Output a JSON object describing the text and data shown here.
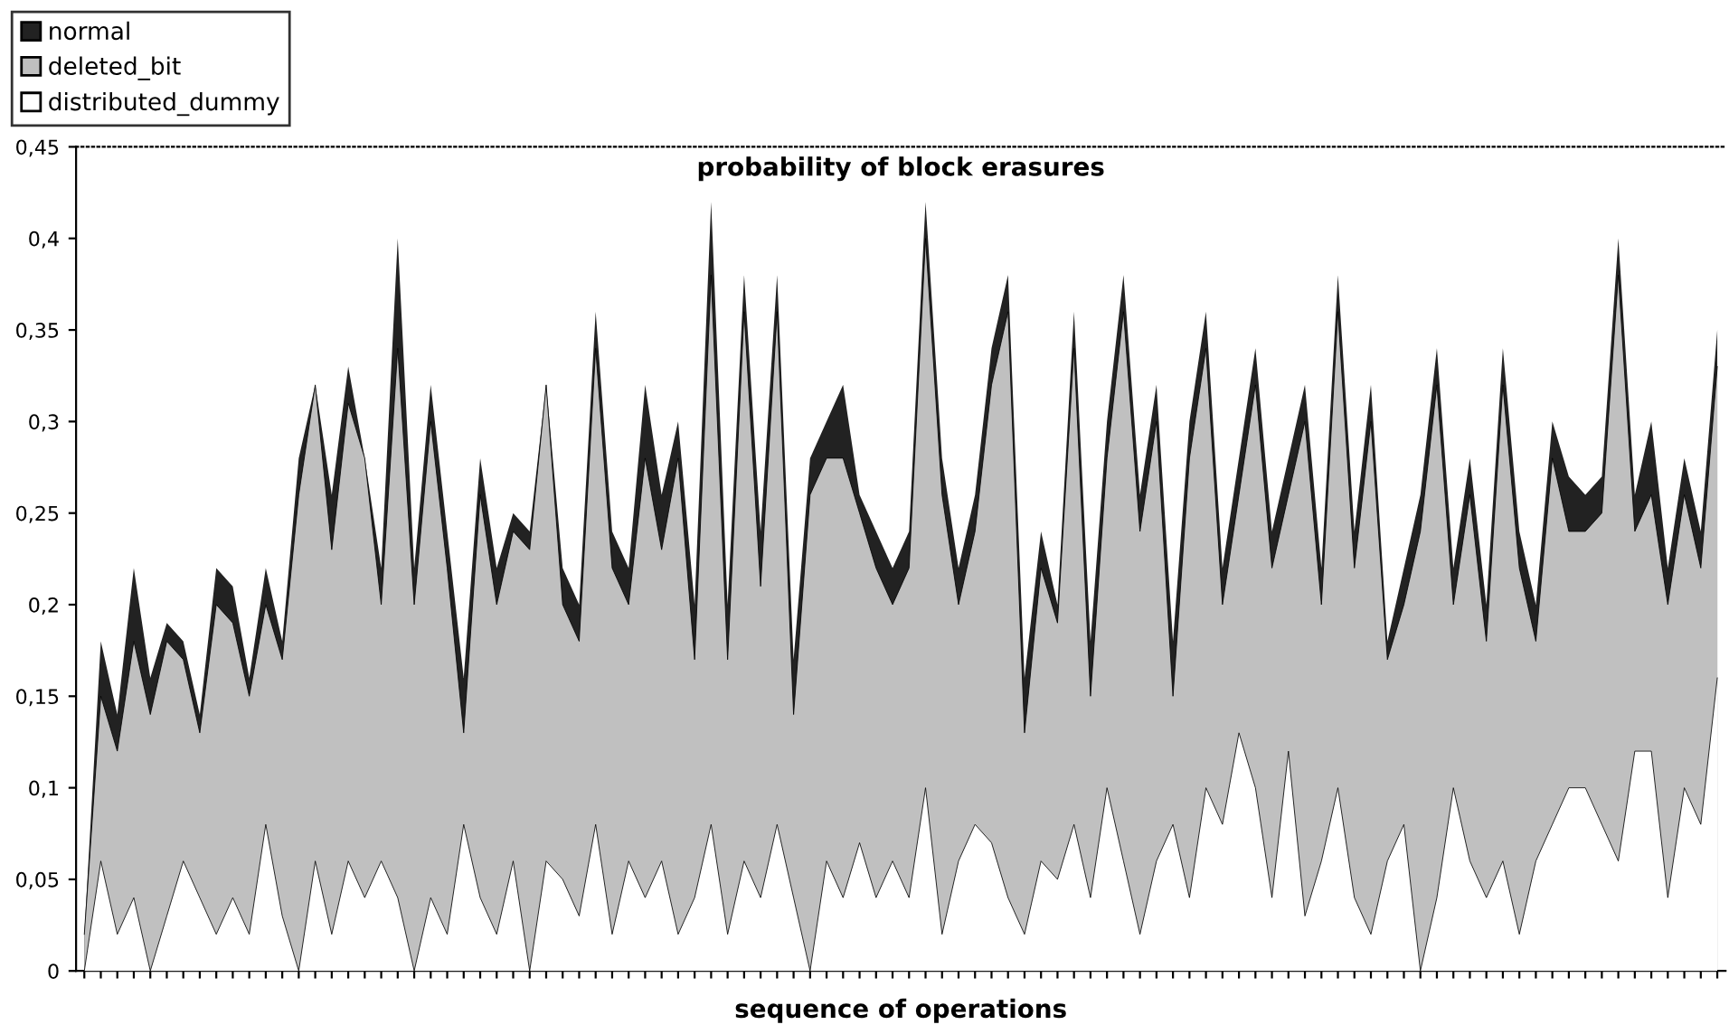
{
  "chart_data": {
    "type": "area",
    "title": "probability of block erasures",
    "xlabel": "sequence of operations",
    "categories": [
      null,
      null,
      null,
      null,
      null,
      null,
      null,
      null,
      null,
      null,
      null,
      null,
      null,
      null,
      null,
      null,
      null,
      null,
      null,
      null,
      null,
      null,
      null,
      null,
      null,
      null,
      null,
      null,
      null,
      null,
      null,
      null,
      null,
      null,
      null,
      null,
      null,
      null,
      null,
      null,
      null,
      null,
      null,
      null,
      null,
      null,
      null,
      null,
      null,
      null,
      null,
      null,
      null,
      null,
      null,
      null,
      null,
      null,
      null,
      null,
      null,
      null,
      null,
      null,
      null,
      null,
      null,
      null,
      null,
      null,
      null,
      null,
      null,
      null,
      null,
      null,
      null,
      null,
      null,
      null,
      null,
      null,
      null,
      null,
      null,
      null,
      null,
      null,
      null,
      null,
      null,
      null,
      null,
      null,
      null,
      null,
      null,
      null,
      null,
      null
    ],
    "series": [
      {
        "name": "normal",
        "color": "#222222",
        "values": [
          0.02,
          0.18,
          0.14,
          0.22,
          0.16,
          0.19,
          0.18,
          0.14,
          0.22,
          0.21,
          0.16,
          0.22,
          0.18,
          0.28,
          0.32,
          0.26,
          0.33,
          0.28,
          0.22,
          0.4,
          0.22,
          0.32,
          0.24,
          0.16,
          0.28,
          0.22,
          0.25,
          0.24,
          0.32,
          0.22,
          0.2,
          0.36,
          0.24,
          0.22,
          0.32,
          0.26,
          0.3,
          0.2,
          0.42,
          0.2,
          0.38,
          0.24,
          0.38,
          0.17,
          0.28,
          0.3,
          0.32,
          0.26,
          0.24,
          0.22,
          0.24,
          0.42,
          0.28,
          0.22,
          0.26,
          0.34,
          0.38,
          0.16,
          0.24,
          0.2,
          0.36,
          0.18,
          0.3,
          0.38,
          0.26,
          0.32,
          0.18,
          0.3,
          0.36,
          0.22,
          0.28,
          0.34,
          0.24,
          0.28,
          0.32,
          0.22,
          0.38,
          0.24,
          0.32,
          0.18,
          0.22,
          0.26,
          0.34,
          0.22,
          0.28,
          0.2,
          0.34,
          0.24,
          0.2,
          0.3,
          0.27,
          0.26,
          0.27,
          0.4,
          0.26,
          0.3,
          0.22,
          0.28,
          0.24,
          0.35
        ]
      },
      {
        "name": "deleted_bit",
        "color": "#c0c0c0",
        "values": [
          0.02,
          0.15,
          0.12,
          0.18,
          0.14,
          0.18,
          0.17,
          0.13,
          0.2,
          0.19,
          0.15,
          0.2,
          0.17,
          0.26,
          0.32,
          0.23,
          0.31,
          0.28,
          0.2,
          0.34,
          0.2,
          0.3,
          0.22,
          0.13,
          0.26,
          0.2,
          0.24,
          0.23,
          0.32,
          0.2,
          0.18,
          0.34,
          0.22,
          0.2,
          0.28,
          0.23,
          0.28,
          0.17,
          0.38,
          0.17,
          0.36,
          0.21,
          0.36,
          0.14,
          0.26,
          0.28,
          0.28,
          0.25,
          0.22,
          0.2,
          0.22,
          0.4,
          0.26,
          0.2,
          0.24,
          0.32,
          0.36,
          0.13,
          0.22,
          0.19,
          0.34,
          0.15,
          0.28,
          0.36,
          0.24,
          0.3,
          0.15,
          0.28,
          0.34,
          0.2,
          0.26,
          0.32,
          0.22,
          0.26,
          0.3,
          0.2,
          0.36,
          0.22,
          0.3,
          0.17,
          0.2,
          0.24,
          0.32,
          0.2,
          0.26,
          0.18,
          0.32,
          0.22,
          0.18,
          0.28,
          0.24,
          0.24,
          0.25,
          0.38,
          0.24,
          0.26,
          0.2,
          0.26,
          0.22,
          0.33
        ]
      },
      {
        "name": "distributed_dummy",
        "color": "#ffffff",
        "values": [
          0.0,
          0.06,
          0.02,
          0.04,
          0.0,
          0.03,
          0.06,
          0.04,
          0.02,
          0.04,
          0.02,
          0.08,
          0.03,
          0.0,
          0.06,
          0.02,
          0.06,
          0.04,
          0.06,
          0.04,
          0.0,
          0.04,
          0.02,
          0.08,
          0.04,
          0.02,
          0.06,
          0.0,
          0.06,
          0.05,
          0.03,
          0.08,
          0.02,
          0.06,
          0.04,
          0.06,
          0.02,
          0.04,
          0.08,
          0.02,
          0.06,
          0.04,
          0.08,
          0.04,
          0.0,
          0.06,
          0.04,
          0.07,
          0.04,
          0.06,
          0.04,
          0.1,
          0.02,
          0.06,
          0.08,
          0.07,
          0.04,
          0.02,
          0.06,
          0.05,
          0.08,
          0.04,
          0.1,
          0.06,
          0.02,
          0.06,
          0.08,
          0.04,
          0.1,
          0.08,
          0.13,
          0.1,
          0.04,
          0.12,
          0.03,
          0.06,
          0.1,
          0.04,
          0.02,
          0.06,
          0.08,
          0.0,
          0.04,
          0.1,
          0.06,
          0.04,
          0.06,
          0.02,
          0.06,
          0.08,
          0.1,
          0.1,
          0.08,
          0.06,
          0.12,
          0.12,
          0.04,
          0.1,
          0.08,
          0.16
        ]
      }
    ],
    "ylim": [
      0,
      0.45
    ],
    "yticks": [
      0,
      {
        "value": 0.05,
        "label": "0,05"
      },
      {
        "value": 0.1,
        "label": "0,1"
      },
      {
        "value": 0.15,
        "label": "0,15"
      },
      {
        "value": 0.2,
        "label": "0,2"
      },
      {
        "value": 0.25,
        "label": "0,25"
      },
      {
        "value": 0.3,
        "label": "0,3"
      },
      {
        "value": 0.35,
        "label": "0,35"
      },
      {
        "value": 0.4,
        "label": "0,4"
      },
      {
        "value": 0.45,
        "label": "0,45"
      }
    ],
    "tick_labels": "y",
    "grid": false,
    "legend": "top left"
  }
}
